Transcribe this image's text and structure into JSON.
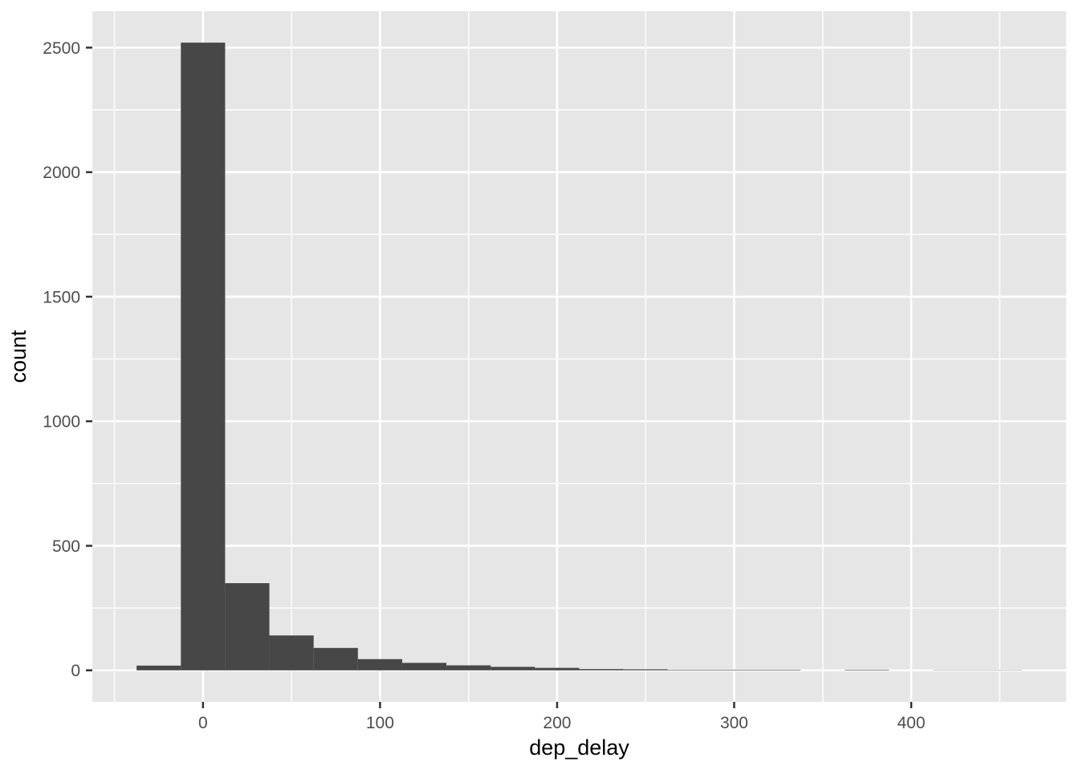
{
  "chart_data": {
    "type": "bar",
    "subtype": "histogram",
    "title": "",
    "xlabel": "dep_delay",
    "ylabel": "count",
    "bin_start": -37.5,
    "bin_width": 25,
    "bins": [
      {
        "x0": -37.5,
        "x1": -12.5,
        "count": 19
      },
      {
        "x0": -12.5,
        "x1": 12.5,
        "count": 2520
      },
      {
        "x0": 12.5,
        "x1": 37.5,
        "count": 350
      },
      {
        "x0": 37.5,
        "x1": 62.5,
        "count": 140
      },
      {
        "x0": 62.5,
        "x1": 87.5,
        "count": 90
      },
      {
        "x0": 87.5,
        "x1": 112.5,
        "count": 45
      },
      {
        "x0": 112.5,
        "x1": 137.5,
        "count": 30
      },
      {
        "x0": 137.5,
        "x1": 162.5,
        "count": 20
      },
      {
        "x0": 162.5,
        "x1": 187.5,
        "count": 14
      },
      {
        "x0": 187.5,
        "x1": 212.5,
        "count": 10
      },
      {
        "x0": 212.5,
        "x1": 237.5,
        "count": 5
      },
      {
        "x0": 237.5,
        "x1": 262.5,
        "count": 4
      },
      {
        "x0": 262.5,
        "x1": 287.5,
        "count": 2
      },
      {
        "x0": 287.5,
        "x1": 312.5,
        "count": 2
      },
      {
        "x0": 312.5,
        "x1": 337.5,
        "count": 2
      },
      {
        "x0": 337.5,
        "x1": 362.5,
        "count": 0
      },
      {
        "x0": 362.5,
        "x1": 387.5,
        "count": 2
      },
      {
        "x0": 387.5,
        "x1": 412.5,
        "count": 0
      },
      {
        "x0": 412.5,
        "x1": 437.5,
        "count": 1
      },
      {
        "x0": 437.5,
        "x1": 462.5,
        "count": 1
      }
    ],
    "xlim": [
      -62.5,
      487.5
    ],
    "ylim": [
      -126.4,
      2646.1
    ],
    "x_axis": {
      "major_ticks": [
        0,
        100,
        200,
        300,
        400
      ],
      "tick_labels": [
        "0",
        "100",
        "200",
        "300",
        "400"
      ],
      "minor_ticks": [
        -50,
        50,
        150,
        250,
        350,
        450
      ]
    },
    "y_axis": {
      "major_ticks": [
        0,
        500,
        1000,
        1500,
        2000,
        2500
      ],
      "tick_labels": [
        "0",
        "500",
        "1000",
        "1500",
        "2000",
        "2500"
      ],
      "minor_ticks": [
        250,
        750,
        1250,
        1750,
        2250
      ]
    },
    "grid": true,
    "legend_position": "none",
    "colors": {
      "bar_fill": "#474747",
      "panel_background": "#E6E6E6",
      "grid_major": "#FFFFFF",
      "grid_minor": "#FFFFFF",
      "axis_text": "#4D4D4D",
      "axis_title": "#000000",
      "tick_mark": "#333333",
      "figure_background": "#FFFFFF"
    }
  }
}
